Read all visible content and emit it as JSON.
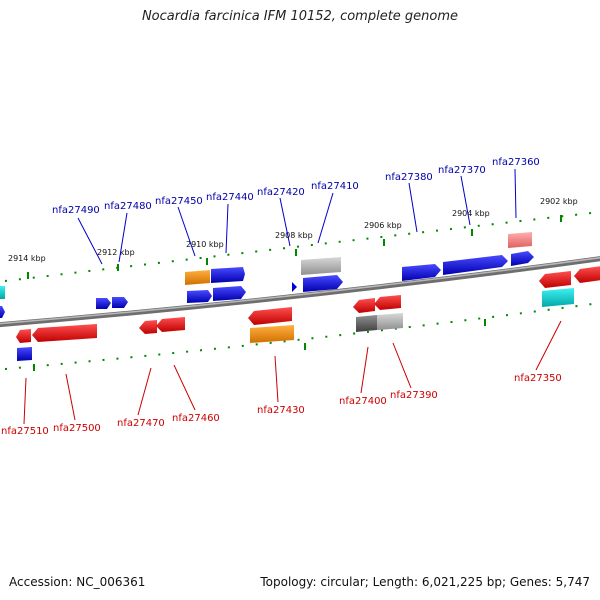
{
  "title": "Nocardia farcinica IFM 10152, complete genome",
  "footer": {
    "accession": "Accession: NC_006361",
    "topology": "Topology: circular; Length: 6,021,225 bp; Genes: 5,747"
  },
  "ticks": [
    "2914 kbp",
    "2912 kbp",
    "2910 kbp",
    "2908 kbp",
    "2906 kbp",
    "2904 kbp",
    "2902 kbp"
  ],
  "upper_labels": [
    "nfa27490",
    "nfa27480",
    "nfa27450",
    "nfa27440",
    "nfa27420",
    "nfa27410",
    "nfa27380",
    "nfa27370",
    "nfa27360"
  ],
  "lower_labels": [
    "nfa27510",
    "nfa27500",
    "nfa27470",
    "nfa27460",
    "nfa27430",
    "nfa27400",
    "nfa27390",
    "nfa27350"
  ],
  "colors": {
    "forward": "#0000dd",
    "reverse": "#ee0000",
    "forward_label": "#0000aa",
    "reverse_label": "#cc0000",
    "backbone": "#808080",
    "tick": "#008800"
  }
}
